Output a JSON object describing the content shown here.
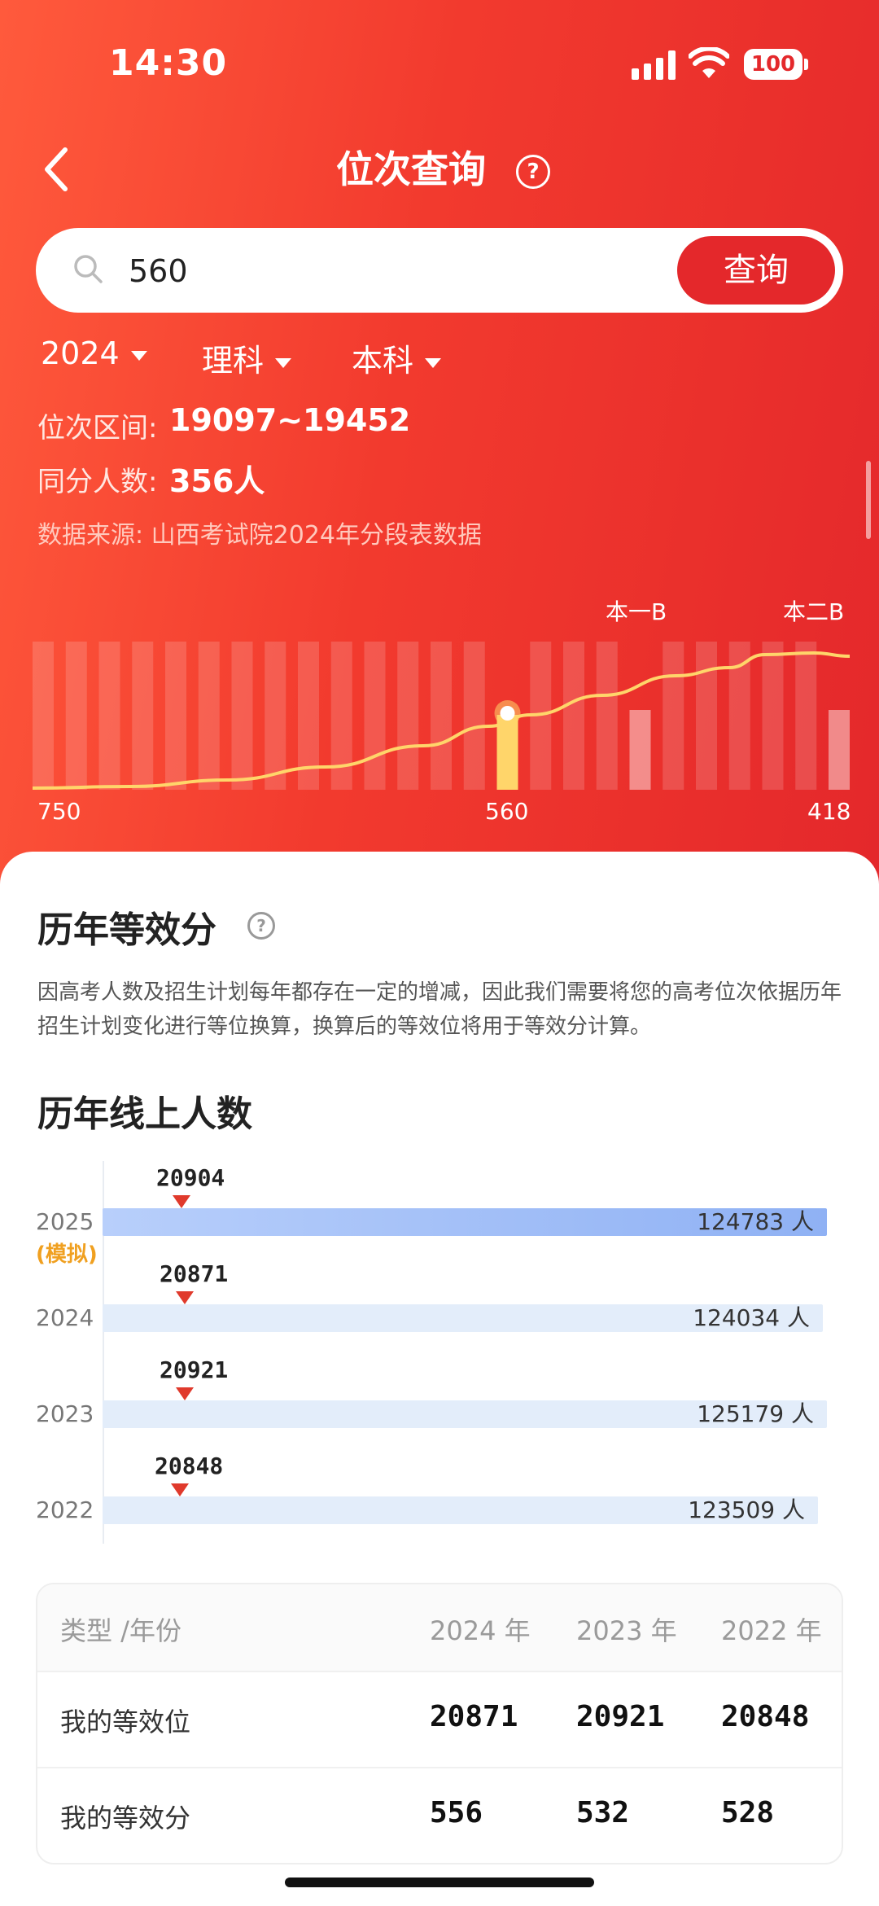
{
  "status_bar": {
    "time": "14:30",
    "battery": "100"
  },
  "nav": {
    "title": "位次查询"
  },
  "search": {
    "value": "560",
    "button": "查询"
  },
  "filters": [
    {
      "label": "2024"
    },
    {
      "label": "理科"
    },
    {
      "label": "本科"
    }
  ],
  "info": {
    "rank_range_label": "位次区间:",
    "rank_range_value": "19097~19452",
    "same_score_label": "同分人数:",
    "same_score_value": "356人",
    "source": "数据来源:  山西考试院2024年分段表数据"
  },
  "rank_chart": {
    "labels": {
      "left": "750",
      "middle": "560",
      "right": "418",
      "line1": "本一B",
      "line2": "本二B"
    },
    "highlight": "560",
    "colors": {
      "bar": "#ffffff",
      "highlight": "#ffd56a",
      "curve": "#ffd56a"
    }
  },
  "equiv_section": {
    "title": "历年等效分",
    "desc": "因高考人数及招生计划每年都存在一定的增减，因此我们需要将您的高考位次依据历年招生计划变化进行等位换算，换算后的等效位将用于等效分计算。"
  },
  "yearly_section": {
    "title": "历年线上人数",
    "rows": [
      {
        "year": "2025",
        "sim": "(模拟)",
        "marker": "20904",
        "total": "124783 人",
        "fraction": 1.0,
        "color": "#9bbcf7"
      },
      {
        "year": "2024",
        "sim": "",
        "marker": "20871",
        "total": "124034 人",
        "fraction": 0.994,
        "color": "#e3edfa"
      },
      {
        "year": "2023",
        "sim": "",
        "marker": "20921",
        "total": "125179 人",
        "fraction": 1.0,
        "color": "#e3edfa"
      },
      {
        "year": "2022",
        "sim": "",
        "marker": "20848",
        "total": "123509 人",
        "fraction": 0.988,
        "color": "#e3edfa"
      }
    ]
  },
  "table": {
    "headers": [
      "类型 /年份",
      "2024 年",
      "2023 年",
      "2022 年"
    ],
    "rows": [
      {
        "label": "我的等效位",
        "values": [
          "20871",
          "20921",
          "20848"
        ]
      },
      {
        "label": "我的等效分",
        "values": [
          "556",
          "532",
          "528"
        ]
      }
    ]
  }
}
